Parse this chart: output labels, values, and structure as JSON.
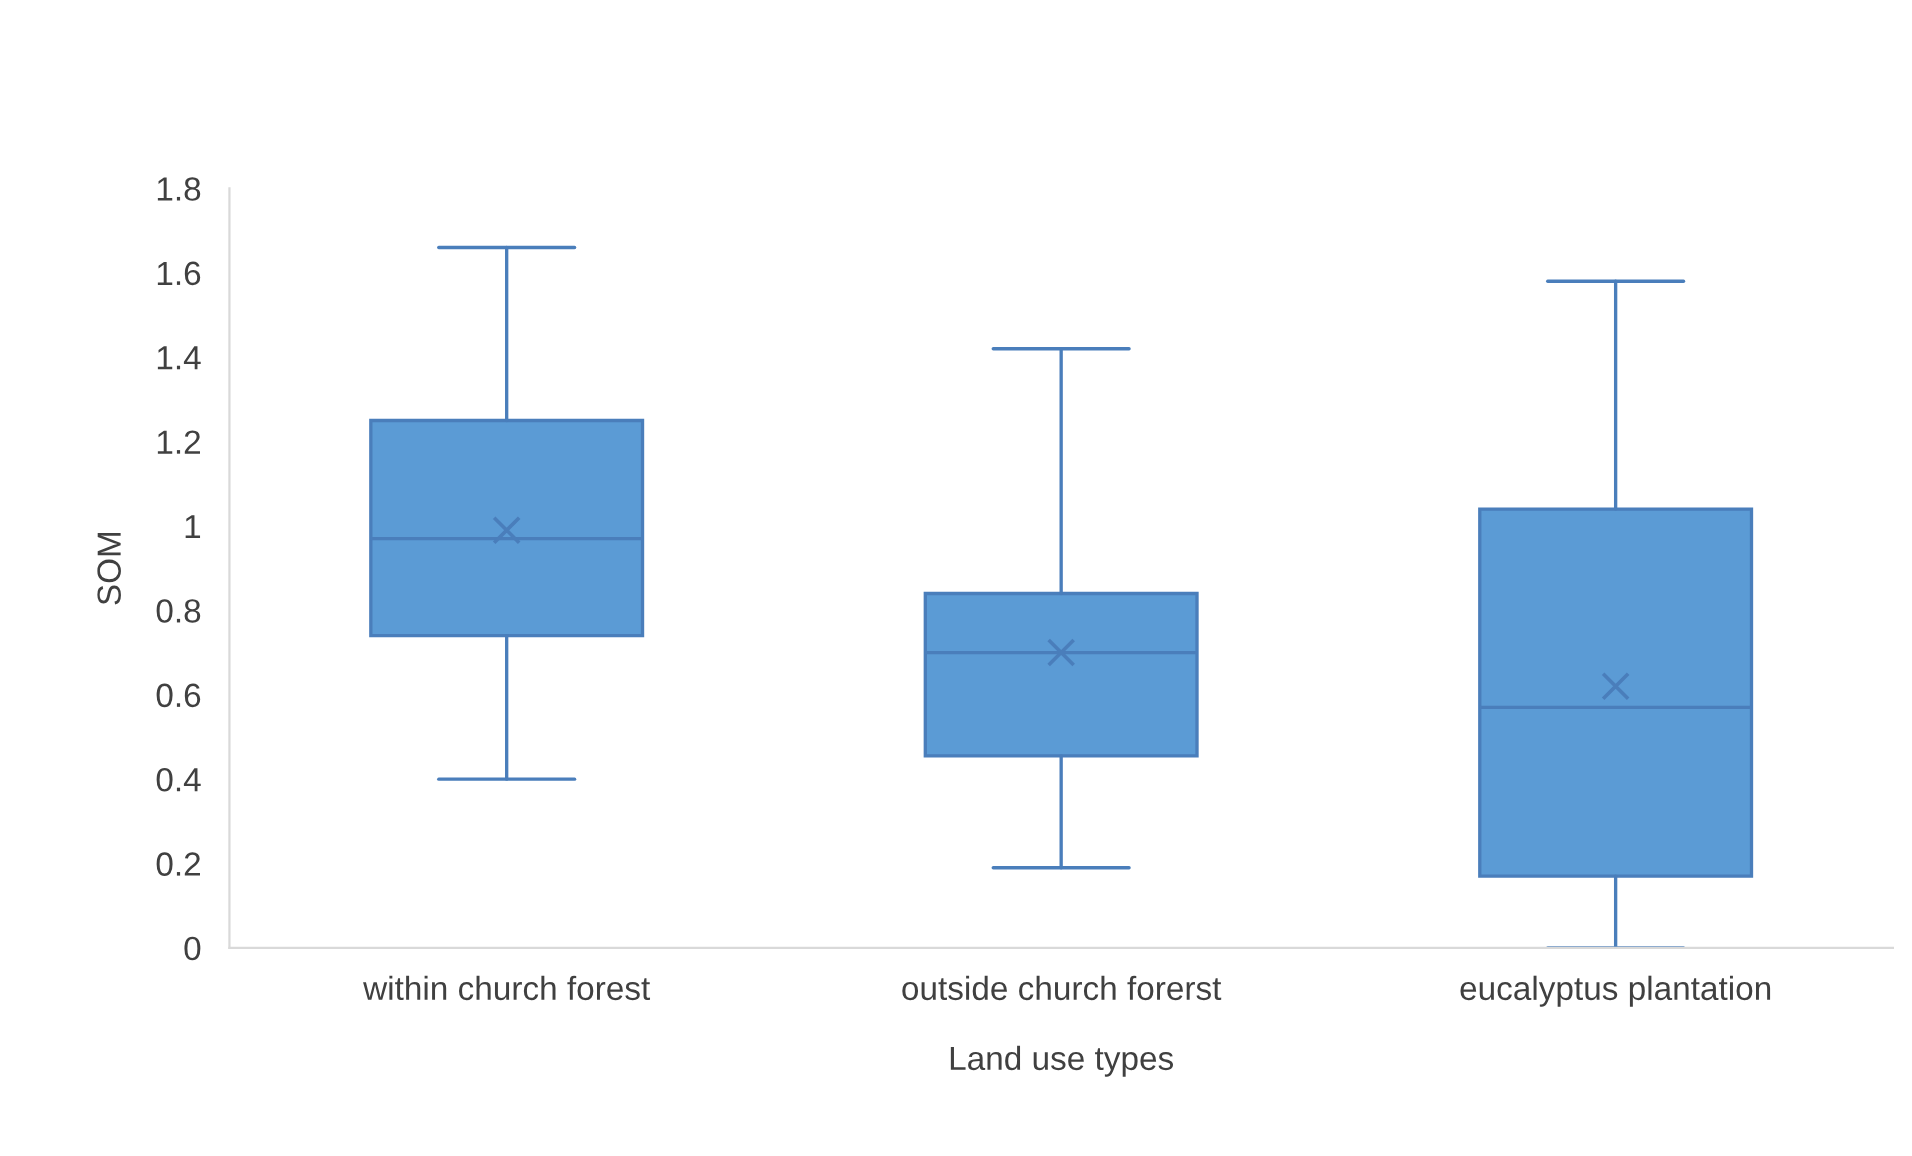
{
  "chart_data": {
    "type": "box",
    "xlabel": "Land use types",
    "ylabel": "SOM",
    "categories": [
      "within church forest",
      "outside church forerst",
      "eucalyptus plantation"
    ],
    "boxes": [
      {
        "low": 0.4,
        "q1": 0.74,
        "median": 0.97,
        "q3": 1.25,
        "high": 1.66,
        "mean": 0.99
      },
      {
        "low": 0.19,
        "q1": 0.455,
        "median": 0.7,
        "q3": 0.84,
        "high": 1.42,
        "mean": 0.7
      },
      {
        "low": 0,
        "q1": 0.17,
        "median": 0.57,
        "q3": 1.04,
        "high": 1.58,
        "mean": 0.62
      }
    ],
    "color": "#5b9bd5",
    "ylim": [
      0,
      1.8
    ],
    "yticks": [
      0,
      {
        "value": 0.2,
        "label": "0.2"
      },
      {
        "value": 0.4,
        "label": "0.4"
      },
      {
        "value": 0.6,
        "label": "0.6"
      },
      {
        "value": 0.8,
        "label": "0.8"
      },
      1,
      {
        "value": 1.2,
        "label": "1.2"
      },
      {
        "value": 1.4,
        "label": "1.4"
      },
      {
        "value": 1.6,
        "label": "1.6"
      },
      {
        "value": 1.8,
        "label": "1.8"
      }
    ],
    "grid": false
  }
}
